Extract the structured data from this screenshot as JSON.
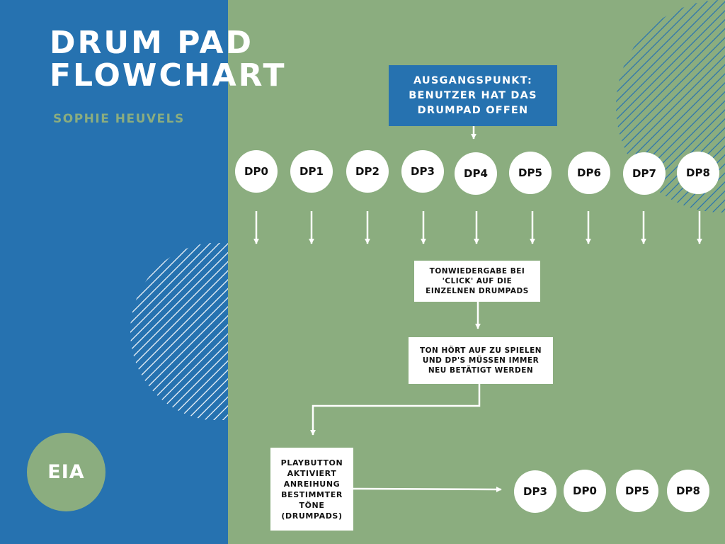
{
  "title": {
    "line1": "DRUM PAD",
    "line2": "FLOWCHART"
  },
  "author": "SOPHIE HEUVELS",
  "logo": "EIA",
  "start": "AUSGANGSPUNKT: BENUTZER HAT DAS DRUMPAD OFFEN",
  "pads": [
    "DP0",
    "DP1",
    "DP2",
    "DP3",
    "DP4",
    "DP5",
    "DP6",
    "DP7",
    "DP8"
  ],
  "step1": "TONWIEDERGABE BEI 'CLICK' AUF DIE EINZELNEN DRUMPADS",
  "step2": "TON HÖRT AUF ZU SPIELEN UND DP'S MÜSSEN IMMER NEU BETÄTIGT WERDEN",
  "step3": "PLAYBUTTON AKTIVIERT ANREIHUNG BESTIMMTER TÖNE (DRUMPADS)",
  "sequence": [
    "DP3",
    "DP0",
    "DP5",
    "DP8"
  ],
  "colors": {
    "blue": "#2672b0",
    "green": "#8bad7f",
    "white": "#ffffff"
  }
}
